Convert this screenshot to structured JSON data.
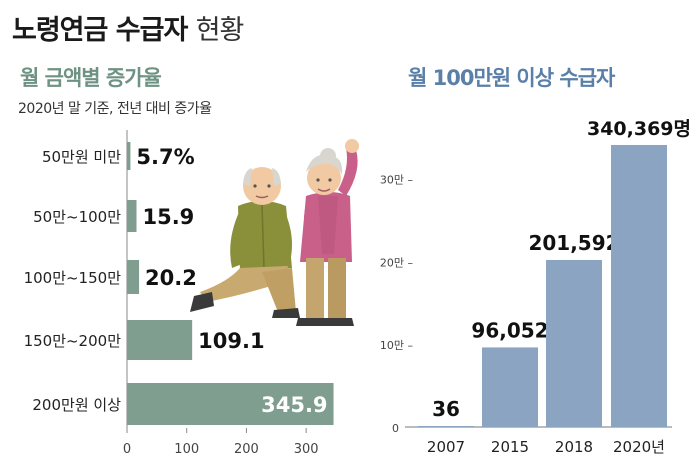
{
  "header": {
    "title_bold": "노령연금 수급자",
    "title_light": "현황"
  },
  "colors": {
    "left_bar": "#7f9e8f",
    "right_bar": "#8aa4c2",
    "left_title": "#6e9283",
    "right_title": "#5a7fa8"
  },
  "chart_data": [
    {
      "type": "bar",
      "orientation": "horizontal",
      "title": "월 금액별 증가율",
      "subtitle": "2020년 말 기준, 전년 대비 증가율",
      "categories": [
        "50만원 미만",
        "50만~100만",
        "100만~150만",
        "150만~200만",
        "200만원 이상"
      ],
      "values": [
        5.7,
        15.9,
        20.2,
        109.1,
        345.9
      ],
      "value_labels": [
        "5.7%",
        "15.9",
        "20.2",
        "109.1",
        "345.9"
      ],
      "xlim": [
        0,
        350
      ],
      "xticks": [
        "0",
        "100",
        "200",
        "300"
      ],
      "xtick_values": [
        0,
        100,
        200,
        300
      ]
    },
    {
      "type": "bar",
      "title": "월 100만원 이상 수급자",
      "categories": [
        "2007",
        "2015",
        "2018",
        "2020년"
      ],
      "values": [
        36,
        96052,
        201592,
        340369
      ],
      "value_labels": [
        "36",
        "96,052",
        "201,592",
        "340,369명"
      ],
      "ylim": [
        0,
        340369
      ],
      "yticks": [
        "0",
        "10만 –",
        "20만 –",
        "30만 –"
      ],
      "ytick_values": [
        0,
        100000,
        200000,
        300000
      ]
    }
  ]
}
